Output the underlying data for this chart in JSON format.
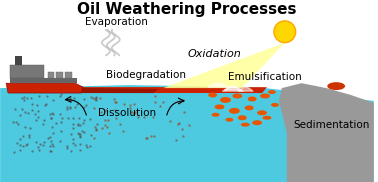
{
  "title": "Oil Weathering Processes",
  "title_fontsize": 11,
  "title_fontweight": "bold",
  "bg_color": "#ffffff",
  "water_color": "#4DCAE0",
  "water_dark": "#2aaac0",
  "oil_color": "#CC2200",
  "oil_dark": "#6a0800",
  "sun_color": "#FFD700",
  "sun_edge": "#FFA500",
  "sunray_color": "#FFFF99",
  "shore_color": "#999999",
  "ship_red": "#CC2200",
  "ship_gray": "#888888",
  "ship_dark": "#555555",
  "orange_blob": "#E85500",
  "smoke_color": "#BBBBBB",
  "dot_color": "#555555",
  "labels": {
    "evaporation": "Evaporation",
    "oxidation": "Oxidation",
    "biodegradation": "Biodegradation",
    "dissolution": "Dissolution",
    "emulsification": "Emulsification",
    "sedimentation": "Sedimentation"
  },
  "label_fontsize": 7.5,
  "figsize": [
    3.78,
    1.82
  ],
  "dpi": 100
}
